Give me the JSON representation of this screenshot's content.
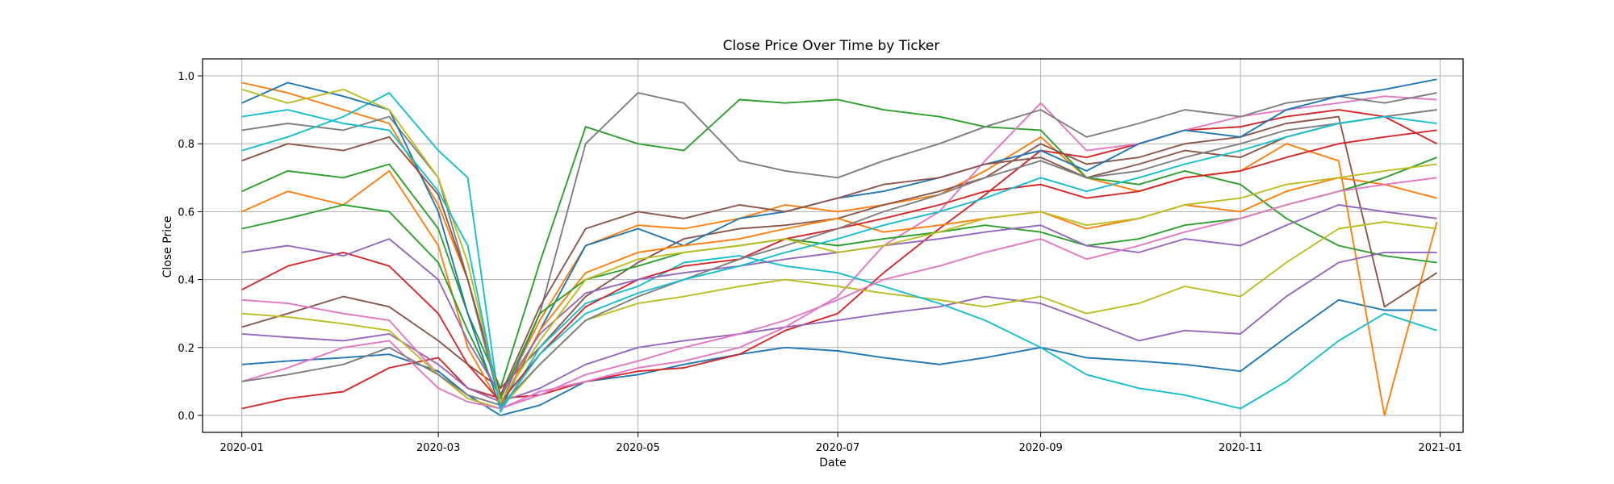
{
  "chart_data": {
    "type": "line",
    "title": "Close Price Over Time by Ticker",
    "xlabel": "Date",
    "ylabel": "Close Price",
    "x_range": [
      "2019-12-20",
      "2021-01-08"
    ],
    "ylim": [
      -0.05,
      1.05
    ],
    "x_ticks": [
      "2020-01",
      "2020-03",
      "2020-05",
      "2020-07",
      "2020-09",
      "2020-11",
      "2021-01"
    ],
    "x_tick_dates": [
      "2020-01-01",
      "2020-03-01",
      "2020-05-01",
      "2020-07-01",
      "2020-09-01",
      "2020-11-01",
      "2021-01-01"
    ],
    "y_ticks": [
      "0.0",
      "0.2",
      "0.4",
      "0.6",
      "0.8",
      "1.0"
    ],
    "y_tick_values": [
      0.0,
      0.2,
      0.4,
      0.6,
      0.8,
      1.0
    ],
    "grid": true,
    "dates": [
      "2020-01-01",
      "2020-01-15",
      "2020-02-01",
      "2020-02-15",
      "2020-03-01",
      "2020-03-10",
      "2020-03-20",
      "2020-04-01",
      "2020-04-15",
      "2020-05-01",
      "2020-05-15",
      "2020-06-01",
      "2020-06-15",
      "2020-07-01",
      "2020-07-15",
      "2020-08-01",
      "2020-08-15",
      "2020-09-01",
      "2020-09-15",
      "2020-10-01",
      "2020-10-15",
      "2020-11-01",
      "2020-11-15",
      "2020-12-01",
      "2020-12-15",
      "2020-12-31"
    ],
    "series": [
      {
        "color": "#1f77b4",
        "values": [
          0.15,
          0.16,
          0.17,
          0.18,
          0.13,
          0.06,
          0.0,
          0.03,
          0.1,
          0.12,
          0.15,
          0.18,
          0.2,
          0.19,
          0.17,
          0.15,
          0.17,
          0.2,
          0.17,
          0.16,
          0.15,
          0.13,
          0.23,
          0.34,
          0.31,
          0.31
        ]
      },
      {
        "color": "#ff7f0e",
        "values": [
          0.98,
          0.95,
          0.9,
          0.86,
          0.62,
          0.4,
          0.05,
          0.28,
          0.5,
          0.56,
          0.55,
          0.58,
          0.62,
          0.6,
          0.62,
          0.65,
          0.72,
          0.82,
          0.7,
          0.66,
          0.7,
          0.72,
          0.8,
          0.75,
          0.0,
          0.57
        ]
      },
      {
        "color": "#2ca02c",
        "values": [
          0.66,
          0.72,
          0.7,
          0.74,
          0.55,
          0.3,
          0.08,
          0.45,
          0.85,
          0.8,
          0.78,
          0.93,
          0.92,
          0.93,
          0.9,
          0.88,
          0.85,
          0.84,
          0.7,
          0.68,
          0.72,
          0.68,
          0.58,
          0.5,
          0.47,
          0.45
        ]
      },
      {
        "color": "#d62728",
        "values": [
          0.02,
          0.05,
          0.07,
          0.14,
          0.17,
          0.08,
          0.05,
          0.06,
          0.1,
          0.13,
          0.14,
          0.18,
          0.25,
          0.3,
          0.42,
          0.55,
          0.65,
          0.78,
          0.76,
          0.8,
          0.84,
          0.85,
          0.88,
          0.9,
          0.88,
          0.8
        ]
      },
      {
        "color": "#9467bd",
        "values": [
          0.24,
          0.23,
          0.22,
          0.24,
          0.15,
          0.08,
          0.04,
          0.08,
          0.15,
          0.2,
          0.22,
          0.24,
          0.26,
          0.28,
          0.3,
          0.32,
          0.35,
          0.33,
          0.28,
          0.22,
          0.25,
          0.24,
          0.35,
          0.45,
          0.48,
          0.48
        ]
      },
      {
        "color": "#8c564b",
        "values": [
          0.26,
          0.3,
          0.35,
          0.32,
          0.22,
          0.15,
          0.08,
          0.2,
          0.35,
          0.45,
          0.52,
          0.55,
          0.56,
          0.58,
          0.62,
          0.66,
          0.7,
          0.8,
          0.74,
          0.76,
          0.8,
          0.82,
          0.86,
          0.88,
          0.32,
          0.42
        ]
      },
      {
        "color": "#e377c2",
        "values": [
          0.34,
          0.33,
          0.3,
          0.28,
          0.12,
          0.05,
          0.02,
          0.07,
          0.1,
          0.14,
          0.16,
          0.2,
          0.26,
          0.35,
          0.5,
          0.6,
          0.75,
          0.92,
          0.78,
          0.8,
          0.84,
          0.88,
          0.9,
          0.92,
          0.94,
          0.93
        ]
      },
      {
        "color": "#7f7f7f",
        "values": [
          0.84,
          0.86,
          0.84,
          0.88,
          0.7,
          0.4,
          0.03,
          0.3,
          0.8,
          0.95,
          0.92,
          0.75,
          0.72,
          0.7,
          0.75,
          0.8,
          0.85,
          0.9,
          0.82,
          0.86,
          0.9,
          0.88,
          0.92,
          0.94,
          0.92,
          0.95
        ]
      },
      {
        "color": "#bcbd22",
        "values": [
          0.3,
          0.29,
          0.27,
          0.25,
          0.12,
          0.05,
          0.02,
          0.15,
          0.28,
          0.33,
          0.35,
          0.38,
          0.4,
          0.38,
          0.36,
          0.34,
          0.32,
          0.35,
          0.3,
          0.33,
          0.38,
          0.35,
          0.45,
          0.55,
          0.57,
          0.55
        ]
      },
      {
        "color": "#17becf",
        "values": [
          0.78,
          0.82,
          0.88,
          0.95,
          0.78,
          0.7,
          0.01,
          0.2,
          0.33,
          0.38,
          0.45,
          0.47,
          0.44,
          0.42,
          0.38,
          0.33,
          0.28,
          0.2,
          0.12,
          0.08,
          0.06,
          0.02,
          0.1,
          0.22,
          0.3,
          0.25
        ]
      },
      {
        "color": "#1f77b4",
        "values": [
          0.92,
          0.98,
          0.94,
          0.9,
          0.6,
          0.3,
          0.02,
          0.25,
          0.5,
          0.55,
          0.5,
          0.58,
          0.6,
          0.64,
          0.66,
          0.7,
          0.74,
          0.78,
          0.72,
          0.8,
          0.84,
          0.82,
          0.9,
          0.94,
          0.96,
          0.99
        ]
      },
      {
        "color": "#ff7f0e",
        "values": [
          0.6,
          0.66,
          0.62,
          0.72,
          0.5,
          0.2,
          0.03,
          0.25,
          0.42,
          0.48,
          0.5,
          0.52,
          0.55,
          0.58,
          0.54,
          0.56,
          0.58,
          0.6,
          0.55,
          0.58,
          0.62,
          0.6,
          0.66,
          0.7,
          0.68,
          0.64
        ]
      },
      {
        "color": "#2ca02c",
        "values": [
          0.55,
          0.58,
          0.62,
          0.6,
          0.45,
          0.25,
          0.05,
          0.3,
          0.4,
          0.44,
          0.48,
          0.5,
          0.52,
          0.5,
          0.52,
          0.54,
          0.56,
          0.54,
          0.5,
          0.52,
          0.56,
          0.58,
          0.62,
          0.66,
          0.7,
          0.76
        ]
      },
      {
        "color": "#d62728",
        "values": [
          0.37,
          0.44,
          0.48,
          0.44,
          0.3,
          0.15,
          0.04,
          0.18,
          0.32,
          0.4,
          0.44,
          0.46,
          0.52,
          0.55,
          0.58,
          0.62,
          0.66,
          0.68,
          0.64,
          0.66,
          0.7,
          0.72,
          0.76,
          0.8,
          0.82,
          0.84
        ]
      },
      {
        "color": "#9467bd",
        "values": [
          0.48,
          0.5,
          0.47,
          0.52,
          0.4,
          0.22,
          0.06,
          0.24,
          0.36,
          0.4,
          0.42,
          0.44,
          0.46,
          0.48,
          0.5,
          0.52,
          0.54,
          0.56,
          0.5,
          0.48,
          0.52,
          0.5,
          0.56,
          0.62,
          0.6,
          0.58
        ]
      },
      {
        "color": "#8c564b",
        "values": [
          0.75,
          0.8,
          0.78,
          0.82,
          0.65,
          0.4,
          0.06,
          0.32,
          0.55,
          0.6,
          0.58,
          0.62,
          0.6,
          0.64,
          0.68,
          0.7,
          0.74,
          0.76,
          0.7,
          0.74,
          0.78,
          0.76,
          0.82,
          0.86,
          0.88,
          0.9
        ]
      },
      {
        "color": "#e377c2",
        "values": [
          0.1,
          0.14,
          0.2,
          0.22,
          0.08,
          0.04,
          0.02,
          0.06,
          0.12,
          0.16,
          0.2,
          0.24,
          0.28,
          0.34,
          0.4,
          0.44,
          0.48,
          0.52,
          0.46,
          0.5,
          0.54,
          0.58,
          0.62,
          0.66,
          0.68,
          0.7
        ]
      },
      {
        "color": "#7f7f7f",
        "values": [
          0.1,
          0.12,
          0.15,
          0.2,
          0.12,
          0.06,
          0.03,
          0.15,
          0.28,
          0.35,
          0.4,
          0.46,
          0.5,
          0.55,
          0.6,
          0.65,
          0.7,
          0.75,
          0.7,
          0.72,
          0.76,
          0.8,
          0.84,
          0.86,
          0.88,
          0.9
        ]
      },
      {
        "color": "#bcbd22",
        "values": [
          0.96,
          0.92,
          0.96,
          0.9,
          0.7,
          0.45,
          0.04,
          0.22,
          0.4,
          0.46,
          0.48,
          0.5,
          0.52,
          0.48,
          0.5,
          0.54,
          0.58,
          0.6,
          0.56,
          0.58,
          0.62,
          0.64,
          0.68,
          0.7,
          0.72,
          0.74
        ]
      },
      {
        "color": "#17becf",
        "values": [
          0.88,
          0.9,
          0.86,
          0.84,
          0.66,
          0.5,
          0.02,
          0.18,
          0.3,
          0.36,
          0.4,
          0.44,
          0.48,
          0.52,
          0.56,
          0.6,
          0.64,
          0.7,
          0.66,
          0.7,
          0.74,
          0.78,
          0.82,
          0.86,
          0.88,
          0.86
        ]
      }
    ]
  }
}
